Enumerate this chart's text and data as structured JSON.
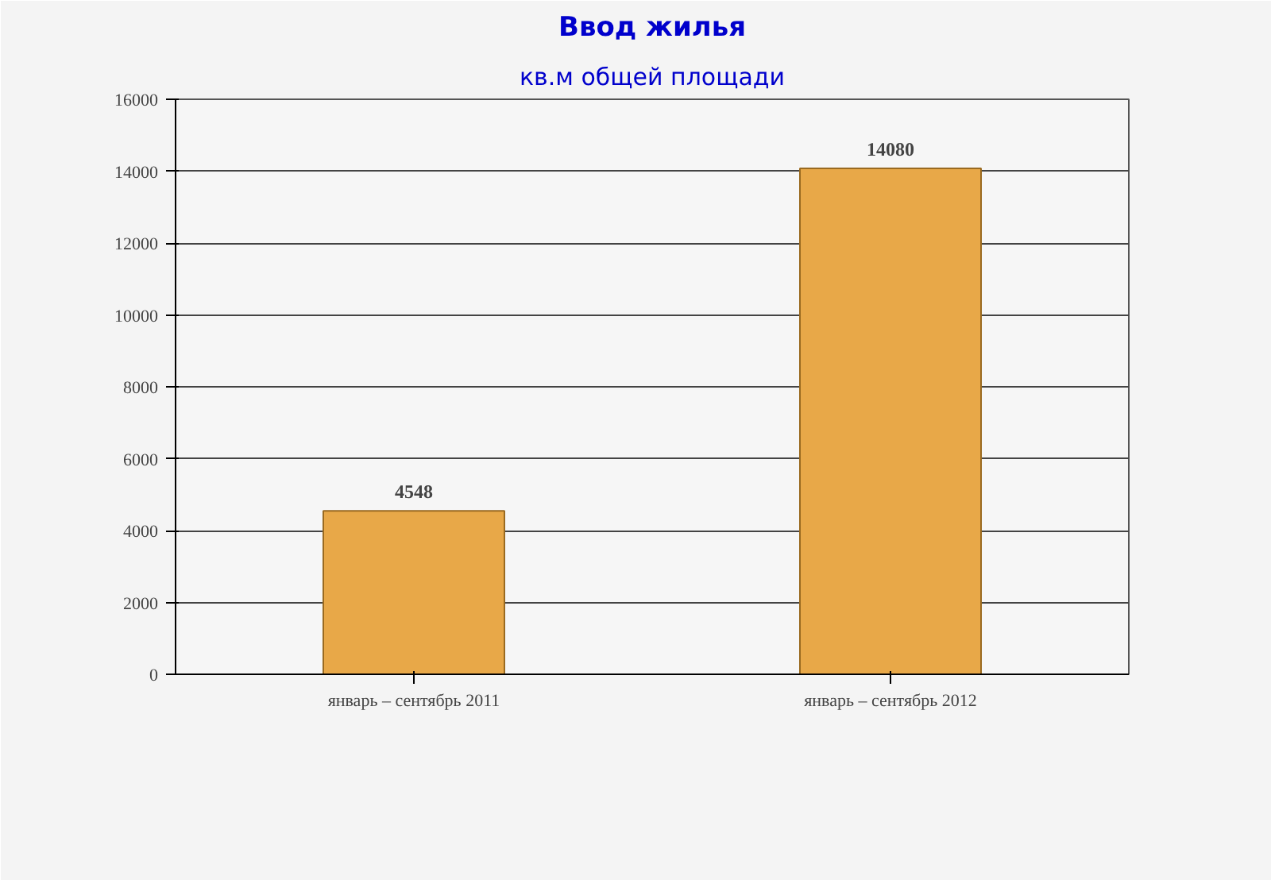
{
  "chart_data": {
    "type": "bar",
    "title": "Ввод жилья",
    "subtitle": "кв.м общей площади",
    "categories": [
      "январь – сентябрь 2011",
      "январь – сентябрь 2012"
    ],
    "values": [
      4548,
      14080
    ],
    "color": "#e8a848",
    "ylim": [
      0,
      16000
    ],
    "yticks": [
      0,
      2000,
      4000,
      6000,
      8000,
      10000,
      12000,
      14000,
      16000
    ],
    "grid": "y",
    "data_labels": true
  }
}
